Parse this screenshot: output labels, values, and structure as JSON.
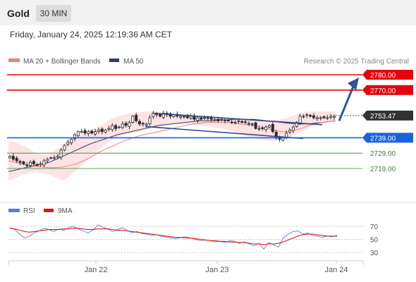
{
  "header": {
    "instrument": "Gold",
    "timeframe": "30 MIN",
    "timestamp": "Friday, January 24, 2025 12:19:36 AM CET"
  },
  "legend_main": {
    "ma20_label": "MA 20 + Bollinger Bands",
    "ma50_label": "MA 50",
    "credit": "Research © 2025 Trading Central"
  },
  "legend_rsi": {
    "rsi_label": "RSI",
    "ma9_label": "9MA"
  },
  "colors": {
    "resistance": "#e8000b",
    "support": "#1a63e0",
    "target": "#2e8b2e",
    "ma20": "#f08080",
    "bollinger_fill": "#fde0e0",
    "ma50": "#2f3e6e",
    "candle": "#2b2b2b",
    "channel": "#2f4a8a",
    "arrow": "#2f5597",
    "rsi": "#5b7fd6",
    "rsi_ma": "#e0181b",
    "last_price_bg": "#333333"
  },
  "chart_data": [
    {
      "type": "candlestick",
      "x_axis_labels": [
        "Jan 22",
        "Jan 23",
        "Jan 24"
      ],
      "ylim": [
        2708,
        2786
      ],
      "last_price": 2753.47,
      "last_price_label": "2753.47",
      "levels": [
        {
          "value": 2780.0,
          "label": "2780.00",
          "kind": "resistance",
          "style": "filled"
        },
        {
          "value": 2770.0,
          "label": "2770.00",
          "kind": "resistance",
          "style": "filled"
        },
        {
          "value": 2739.0,
          "label": "2739.00",
          "kind": "support",
          "style": "filled"
        },
        {
          "value": 2729.0,
          "label": "2729.00",
          "kind": "target",
          "style": "text"
        },
        {
          "value": 2719.0,
          "label": "2719.00",
          "kind": "target",
          "style": "text"
        }
      ],
      "close_series": [
        2727,
        2725,
        2724,
        2723,
        2722,
        2721,
        2723,
        2722,
        2721,
        2722,
        2724,
        2725,
        2726,
        2726,
        2727,
        2731,
        2734,
        2736,
        2738,
        2741,
        2743,
        2743,
        2742,
        2743,
        2742,
        2743,
        2744,
        2743,
        2744,
        2745,
        2747,
        2745,
        2746,
        2748,
        2747,
        2749,
        2753,
        2750,
        2748,
        2748,
        2748,
        2752,
        2755,
        2754,
        2753,
        2755,
        2754,
        2753,
        2754,
        2753,
        2753,
        2753,
        2752,
        2753,
        2751,
        2752,
        2751,
        2752,
        2752,
        2751,
        2751,
        2750,
        2751,
        2750,
        2750,
        2749,
        2749,
        2750,
        2749,
        2749,
        2748,
        2748,
        2745,
        2745,
        2745,
        2746,
        2747,
        2743,
        2739,
        2738,
        2739,
        2742,
        2744,
        2746,
        2749,
        2753,
        2753,
        2754,
        2753,
        2752,
        2752,
        2752,
        2752,
        2752,
        2753,
        2753
      ],
      "ma20": [
        2724,
        2723,
        2722,
        2721,
        2720.5,
        2720,
        2719.5,
        2719.5,
        2720,
        2721,
        2722,
        2724,
        2726,
        2729,
        2731,
        2733,
        2735,
        2737,
        2738.5,
        2740,
        2741,
        2742,
        2743,
        2744,
        2745,
        2746,
        2747,
        2748,
        2748.5,
        2749,
        2749,
        2749,
        2749,
        2748.5,
        2748,
        2747.5,
        2747,
        2746,
        2745,
        2744,
        2743,
        2743,
        2744,
        2745,
        2747,
        2748,
        2749,
        2749.5,
        2750
      ],
      "bb_upper": [
        2737,
        2736,
        2734,
        2732,
        2729,
        2728,
        2728,
        2731,
        2735,
        2738,
        2740,
        2742,
        2744,
        2746,
        2748,
        2751,
        2753,
        2754,
        2755,
        2755.5,
        2756,
        2756,
        2755.5,
        2755,
        2754.5,
        2754,
        2754,
        2753.5,
        2753,
        2753,
        2752.5,
        2752,
        2752,
        2751.5,
        2751,
        2751,
        2750.5,
        2750,
        2750,
        2750.5,
        2751,
        2752,
        2754,
        2755,
        2756,
        2756,
        2756,
        2756,
        2756
      ],
      "bb_lower": [
        2711,
        2713,
        2715,
        2716,
        2717,
        2716,
        2715,
        2713,
        2711,
        2714,
        2718,
        2722,
        2726,
        2730,
        2734,
        2737,
        2740,
        2741,
        2742,
        2743,
        2744,
        2745,
        2746,
        2747,
        2747.5,
        2748,
        2748,
        2747.5,
        2747,
        2746.5,
        2746,
        2745,
        2744,
        2743,
        2742,
        2740,
        2739,
        2738,
        2737,
        2737,
        2738,
        2739,
        2741,
        2743,
        2745,
        2747,
        2748,
        2749,
        2750
      ],
      "ma50": [
        2717,
        2718,
        2719,
        2720,
        2721,
        2722,
        2723,
        2725,
        2727,
        2729,
        2731,
        2733,
        2735,
        2736.5,
        2738,
        2739.5,
        2741,
        2742,
        2743,
        2744,
        2745,
        2746,
        2747,
        2747.5,
        2748,
        2748.5,
        2749,
        2749.5,
        2750,
        2750,
        2750,
        2750.5,
        2750.5,
        2751,
        2751,
        2751,
        2751,
        2750.5,
        2750,
        2749.5,
        2749,
        2748.5,
        2748,
        2748,
        2748,
        2748.5,
        2749,
        2749.5,
        2750
      ]
    },
    {
      "type": "line",
      "title": "RSI",
      "y_ticks": [
        70,
        50,
        30
      ],
      "ylim": [
        25,
        80
      ],
      "series": [
        {
          "name": "RSI",
          "values": [
            68,
            65,
            58,
            52,
            55,
            60,
            63,
            67,
            65,
            62,
            66,
            64,
            68,
            70,
            66,
            63,
            60,
            64,
            72,
            69,
            66,
            62,
            65,
            68,
            64,
            60,
            62,
            59,
            58,
            56,
            57,
            55,
            53,
            52,
            51,
            53,
            54,
            52,
            50,
            48,
            49,
            48,
            46,
            47,
            45,
            48,
            47,
            44,
            46,
            43,
            40,
            44,
            35,
            45,
            42,
            38,
            52,
            58,
            62,
            63,
            58,
            60,
            56,
            55,
            53,
            55,
            54,
            56
          ]
        },
        {
          "name": "9MA",
          "values": [
            67,
            66,
            64,
            62,
            61,
            62,
            63,
            64,
            65,
            65,
            65,
            66,
            66,
            67,
            67,
            66,
            65,
            65,
            66,
            66,
            66,
            65,
            64,
            64,
            63,
            62,
            61,
            60,
            59,
            58,
            57,
            56,
            55,
            54,
            53,
            53,
            52,
            52,
            51,
            50,
            49,
            48,
            48,
            47,
            47,
            46,
            46,
            45,
            45,
            44,
            43,
            43,
            42,
            43,
            43,
            44,
            46,
            49,
            52,
            55,
            57,
            58,
            58,
            57,
            56,
            55,
            55,
            55
          ]
        }
      ]
    }
  ]
}
